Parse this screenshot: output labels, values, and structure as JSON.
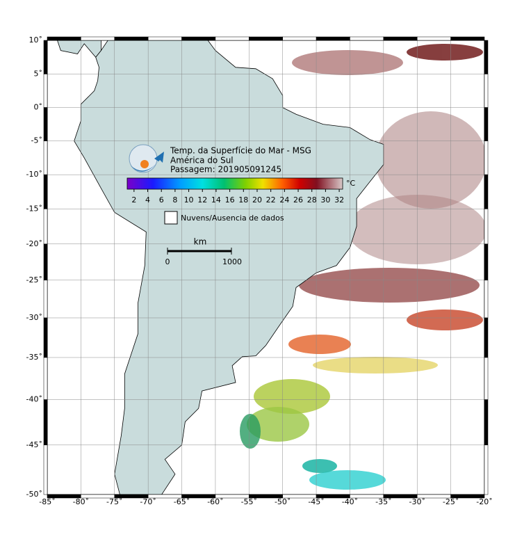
{
  "map": {
    "lonlim": [
      -85,
      -20
    ],
    "latlim": [
      -50,
      10
    ],
    "lon_ticks": [
      {
        "value": -85,
        "label": "-85˚"
      },
      {
        "value": -80,
        "label": "-80˚"
      },
      {
        "value": -75,
        "label": "-75˚"
      },
      {
        "value": -70,
        "label": "-70˚"
      },
      {
        "value": -65,
        "label": "-65˚"
      },
      {
        "value": -60,
        "label": "-60˚"
      },
      {
        "value": -55,
        "label": "-55˚"
      },
      {
        "value": -50,
        "label": "-50˚"
      },
      {
        "value": -45,
        "label": "-45˚"
      },
      {
        "value": -40,
        "label": "-40˚"
      },
      {
        "value": -35,
        "label": "-35˚"
      },
      {
        "value": -30,
        "label": "-30˚"
      },
      {
        "value": -25,
        "label": "-25˚"
      },
      {
        "value": -20,
        "label": "-20˚"
      }
    ],
    "lat_ticks": [
      {
        "value": 10,
        "label": "10˚"
      },
      {
        "value": 5,
        "label": "5˚"
      },
      {
        "value": 0,
        "label": "0˚"
      },
      {
        "value": -5,
        "label": "-5˚"
      },
      {
        "value": -10,
        "label": "-10˚"
      },
      {
        "value": -15,
        "label": "-15˚"
      },
      {
        "value": -20,
        "label": "-20˚"
      },
      {
        "value": -25,
        "label": "-25˚"
      },
      {
        "value": -30,
        "label": "-30˚"
      },
      {
        "value": -35,
        "label": "-35˚"
      },
      {
        "value": -40,
        "label": "-40˚"
      },
      {
        "value": -45,
        "label": "-45˚"
      },
      {
        "value": -50,
        "label": "-50˚"
      }
    ],
    "grid": true
  },
  "header": {
    "title": "Temp. da Superfície do Mar - MSG",
    "region": "América do Sul",
    "pass": "Passagem: 201905091245"
  },
  "colorbar": {
    "unit": "°C",
    "range": [
      1,
      32.5
    ],
    "ticks": [
      2,
      4,
      6,
      8,
      10,
      12,
      14,
      16,
      18,
      20,
      22,
      24,
      26,
      28,
      30,
      32
    ]
  },
  "legend": {
    "no_data": "Nuvens/Ausencia de dados"
  },
  "scale_bar": {
    "unit": "km",
    "start": "0",
    "end": "1000"
  }
}
